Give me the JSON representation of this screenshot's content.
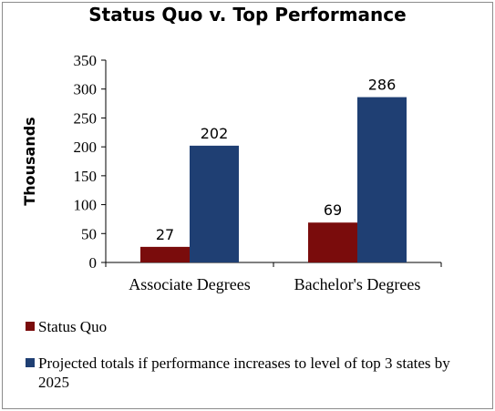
{
  "chart_data": {
    "type": "bar",
    "title": "Status Quo v. Top Performance",
    "ylabel": "Thousands",
    "xlabel": "",
    "categories": [
      "Associate Degrees",
      "Bachelor's Degrees"
    ],
    "series": [
      {
        "name": "Status Quo",
        "values": [
          27,
          69
        ],
        "color": "#7a0c0c"
      },
      {
        "name": "Projected totals if performance increases to level of top 3 states by 2025",
        "values": [
          202,
          286
        ],
        "color": "#1f3f73"
      }
    ],
    "ylim": [
      0,
      350
    ],
    "yticks": [
      0,
      50,
      100,
      150,
      200,
      250,
      300,
      350
    ],
    "grid": false,
    "legend_position": "bottom"
  }
}
